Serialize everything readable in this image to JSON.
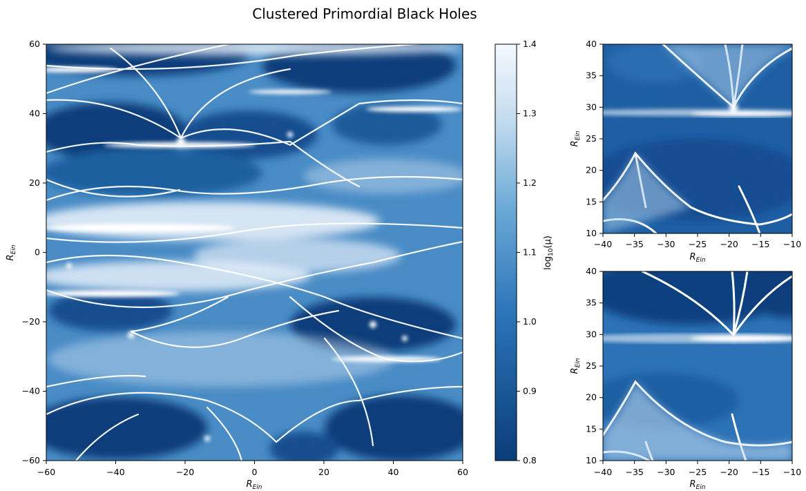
{
  "chart_data": {
    "type": "heatmap",
    "title": "Clustered Primordial Black Holes",
    "colormap": "Blues_r",
    "colors": {
      "min": "#0b3d7a",
      "mid": "#4a90c8",
      "max": "#f4f9ff"
    },
    "colorbar": {
      "label": "log10(μ)",
      "label_parts": [
        "log",
        "10",
        "(μ)"
      ],
      "range": [
        0.8,
        1.4
      ],
      "ticks": [
        "0.8",
        "0.9",
        "1.0",
        "1.1",
        "1.2",
        "1.3",
        "1.4"
      ]
    },
    "panels": [
      {
        "name": "main",
        "xlim": [
          -60,
          60
        ],
        "ylim": [
          -60,
          60
        ],
        "xlabel": "R_Ein",
        "ylabel": "R_Ein",
        "xlabel_parts": [
          "R",
          "Ein"
        ],
        "ylabel_parts": [
          "R",
          "Ein"
        ],
        "xticks": [
          "−60",
          "−40",
          "−20",
          "0",
          "20",
          "40",
          "60"
        ],
        "yticks": [
          "−60",
          "−40",
          "−20",
          "0",
          "20",
          "40",
          "60"
        ]
      },
      {
        "name": "zoom-top",
        "xlim": [
          -40,
          -10
        ],
        "ylim": [
          10,
          40
        ],
        "xlabel": "R_Ein",
        "ylabel": "R_Ein",
        "xlabel_parts": [
          "R",
          "Ein"
        ],
        "ylabel_parts": [
          "R",
          "Ein"
        ],
        "xticks": [
          "−40",
          "−35",
          "−30",
          "−25",
          "−20",
          "−15",
          "−10"
        ],
        "yticks": [
          "10",
          "15",
          "20",
          "25",
          "30",
          "35",
          "40"
        ]
      },
      {
        "name": "zoom-bottom",
        "xlim": [
          -40,
          -10
        ],
        "ylim": [
          10,
          40
        ],
        "xlabel": "R_Ein",
        "ylabel": "R_Ein",
        "xlabel_parts": [
          "R",
          "Ein"
        ],
        "ylabel_parts": [
          "R",
          "Ein"
        ],
        "xticks": [
          "−40",
          "−35",
          "−30",
          "−25",
          "−20",
          "−15",
          "−10"
        ],
        "yticks": [
          "10",
          "15",
          "20",
          "25",
          "30",
          "35",
          "40"
        ]
      }
    ]
  }
}
